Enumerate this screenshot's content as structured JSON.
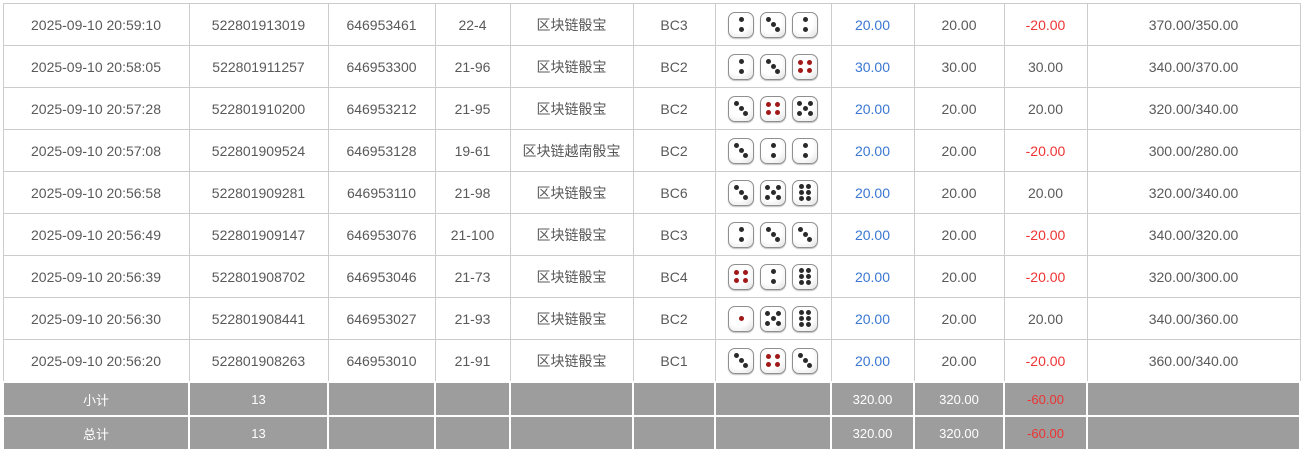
{
  "colors": {
    "bet_amount_blue": "#3a77d2",
    "negative_red": "#ee3333",
    "summary_bg_gray": "#9d9d9d",
    "body_text": "#595959",
    "table_border": "#cccccc",
    "die_pip_black": "#2a2a2a",
    "die_pip_red": "#a01818"
  },
  "dice_red_values": [
    1,
    4
  ],
  "rows": [
    {
      "time": "2025-09-10 20:59:10",
      "order_no": "522801913019",
      "round_no": "646953461",
      "period": "22-4",
      "game": "区块链骰宝",
      "play_type": "BC3",
      "dice": [
        2,
        3,
        2
      ],
      "bet_amount": "20.00",
      "valid_amount": "20.00",
      "win_loss": "-20.00",
      "balance": "370.00/350.00"
    },
    {
      "time": "2025-09-10 20:58:05",
      "order_no": "522801911257",
      "round_no": "646953300",
      "period": "21-96",
      "game": "区块链骰宝",
      "play_type": "BC2",
      "dice": [
        2,
        3,
        4
      ],
      "bet_amount": "30.00",
      "valid_amount": "30.00",
      "win_loss": "30.00",
      "balance": "340.00/370.00"
    },
    {
      "time": "2025-09-10 20:57:28",
      "order_no": "522801910200",
      "round_no": "646953212",
      "period": "21-95",
      "game": "区块链骰宝",
      "play_type": "BC2",
      "dice": [
        3,
        4,
        5
      ],
      "bet_amount": "20.00",
      "valid_amount": "20.00",
      "win_loss": "20.00",
      "balance": "320.00/340.00"
    },
    {
      "time": "2025-09-10 20:57:08",
      "order_no": "522801909524",
      "round_no": "646953128",
      "period": "19-61",
      "game": "区块链越南骰宝",
      "play_type": "BC2",
      "dice": [
        3,
        2,
        2
      ],
      "bet_amount": "20.00",
      "valid_amount": "20.00",
      "win_loss": "-20.00",
      "balance": "300.00/280.00"
    },
    {
      "time": "2025-09-10 20:56:58",
      "order_no": "522801909281",
      "round_no": "646953110",
      "period": "21-98",
      "game": "区块链骰宝",
      "play_type": "BC6",
      "dice": [
        3,
        5,
        6
      ],
      "bet_amount": "20.00",
      "valid_amount": "20.00",
      "win_loss": "20.00",
      "balance": "320.00/340.00"
    },
    {
      "time": "2025-09-10 20:56:49",
      "order_no": "522801909147",
      "round_no": "646953076",
      "period": "21-100",
      "game": "区块链骰宝",
      "play_type": "BC3",
      "dice": [
        2,
        3,
        3
      ],
      "bet_amount": "20.00",
      "valid_amount": "20.00",
      "win_loss": "-20.00",
      "balance": "340.00/320.00"
    },
    {
      "time": "2025-09-10 20:56:39",
      "order_no": "522801908702",
      "round_no": "646953046",
      "period": "21-73",
      "game": "区块链骰宝",
      "play_type": "BC4",
      "dice": [
        4,
        2,
        6
      ],
      "bet_amount": "20.00",
      "valid_amount": "20.00",
      "win_loss": "-20.00",
      "balance": "320.00/300.00"
    },
    {
      "time": "2025-09-10 20:56:30",
      "order_no": "522801908441",
      "round_no": "646953027",
      "period": "21-93",
      "game": "区块链骰宝",
      "play_type": "BC2",
      "dice": [
        1,
        5,
        6
      ],
      "bet_amount": "20.00",
      "valid_amount": "20.00",
      "win_loss": "20.00",
      "balance": "340.00/360.00"
    },
    {
      "time": "2025-09-10 20:56:20",
      "order_no": "522801908263",
      "round_no": "646953010",
      "period": "21-91",
      "game": "区块链骰宝",
      "play_type": "BC1",
      "dice": [
        3,
        4,
        3
      ],
      "bet_amount": "20.00",
      "valid_amount": "20.00",
      "win_loss": "-20.00",
      "balance": "360.00/340.00"
    }
  ],
  "summary_rows": [
    {
      "label": "小计",
      "count": "13",
      "bet_total": "320.00",
      "valid_total": "320.00",
      "win_loss_total": "-60.00"
    },
    {
      "label": "总计",
      "count": "13",
      "bet_total": "320.00",
      "valid_total": "320.00",
      "win_loss_total": "-60.00"
    }
  ]
}
